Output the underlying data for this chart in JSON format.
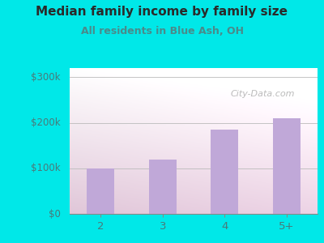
{
  "title": "Median family income by family size",
  "subtitle": "All residents in Blue Ash, OH",
  "categories": [
    "2",
    "3",
    "4",
    "5+"
  ],
  "values": [
    100000,
    120000,
    185000,
    210000
  ],
  "bar_color": "#c0a8d8",
  "outer_bg": "#00e8e8",
  "title_color": "#2a2a2a",
  "subtitle_color": "#4a8a8a",
  "axis_label_color": "#4a7a7a",
  "ytick_labels": [
    "$0",
    "$100k",
    "$200k",
    "$300k"
  ],
  "ytick_values": [
    0,
    100000,
    200000,
    300000
  ],
  "ylim": [
    0,
    320000
  ],
  "watermark": "City-Data.com",
  "plot_left": "#c8e8c0",
  "plot_right": "#f0f8f0",
  "grid_color": "#bbbbbb"
}
